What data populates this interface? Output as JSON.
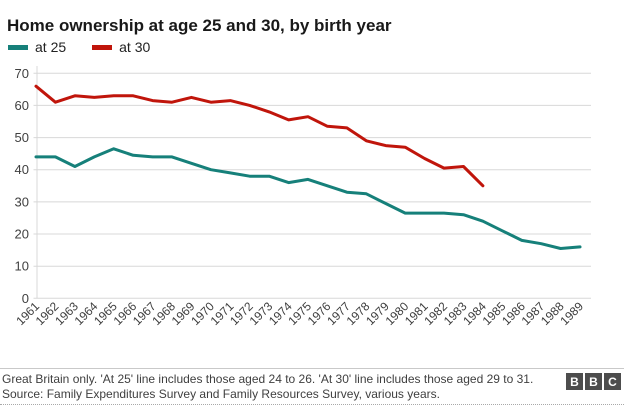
{
  "chart_data": {
    "type": "line",
    "title": "Home ownership at age 25 and 30, by birth year",
    "xlabel": "",
    "ylabel": "",
    "x": [
      1961,
      1962,
      1963,
      1964,
      1965,
      1966,
      1967,
      1968,
      1969,
      1970,
      1971,
      1972,
      1973,
      1974,
      1975,
      1976,
      1977,
      1978,
      1979,
      1980,
      1981,
      1982,
      1983,
      1984,
      1985,
      1986,
      1987,
      1988,
      1989
    ],
    "series": [
      {
        "name": "at 25",
        "color": "#16807a",
        "values": [
          44,
          44,
          41,
          44,
          46.5,
          44.5,
          44,
          44,
          42,
          40,
          39,
          38,
          38,
          36,
          37,
          35,
          33,
          32.5,
          29.5,
          26.5,
          26.5,
          26.5,
          26,
          24,
          21,
          18,
          17,
          15.5,
          16
        ]
      },
      {
        "name": "at 30",
        "color": "#c0150b",
        "values": [
          66,
          61,
          63,
          62.5,
          63,
          63,
          61.5,
          61,
          62.5,
          61,
          61.5,
          60,
          58,
          55.5,
          56.5,
          53.5,
          53,
          49,
          47.5,
          47,
          43.5,
          40.5,
          41,
          35
        ]
      }
    ],
    "ylim": [
      0,
      70
    ],
    "yticks": [
      0,
      10,
      20,
      30,
      40,
      50,
      60,
      70
    ],
    "grid": true,
    "legend_position": "top-left"
  },
  "footer": {
    "note": "Great Britain only. 'At 25' line includes those aged 24 to 26. 'At 30' line includes those aged 29 to 31. Source: Family Expenditures Survey and Family Resources Survey, various years.",
    "logo": [
      "B",
      "B",
      "C"
    ]
  },
  "colors": {
    "at25_line": "#16807a",
    "at30_line": "#c0150b",
    "gridline": "#d8d8d8",
    "axis_text": "#3d3d3d",
    "logo_block": "#4d4d4d"
  }
}
